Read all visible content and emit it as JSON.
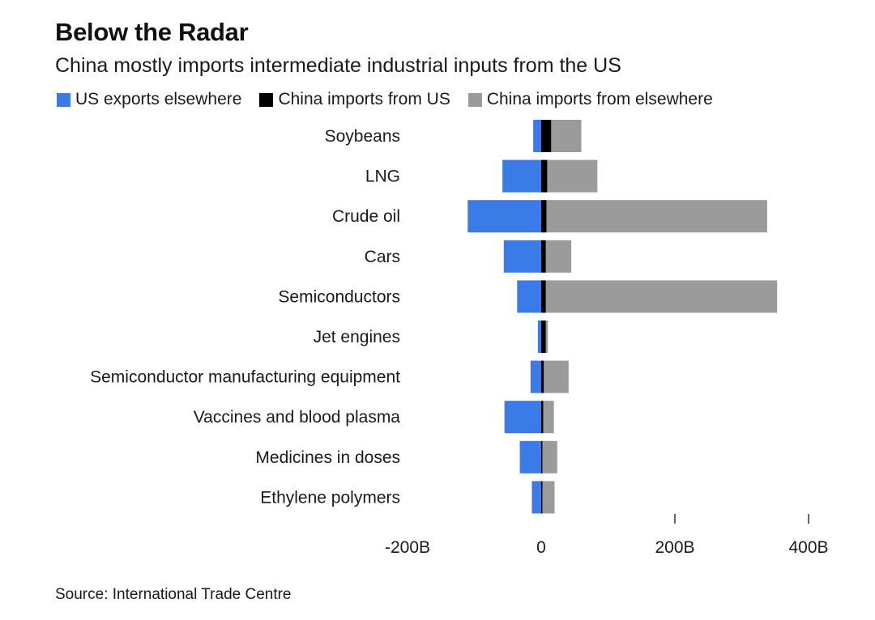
{
  "header": {
    "title": "Below the Radar",
    "subtitle": "China mostly imports intermediate industrial inputs from the US"
  },
  "source": "Source: International Trade Centre",
  "colors": {
    "us_exports_elsewhere": "#3a7be8",
    "china_imports_from_us": "#000000",
    "china_imports_elsewhere": "#9b9b9b"
  },
  "chart_data": {
    "type": "bar",
    "orientation": "horizontal",
    "stacked": "diverging",
    "categories": [
      "Soybeans",
      "LNG",
      "Crude oil",
      "Cars",
      "Semiconductors",
      "Jet engines",
      "Semiconductor manufacturing equipment",
      "Vaccines and blood plasma",
      "Medicines in doses",
      "Ethylene polymers"
    ],
    "series": [
      {
        "name": "US exports elsewhere",
        "color": "#3a7be8",
        "values": [
          -12,
          -58,
          -110,
          -56,
          -36,
          -5,
          -16,
          -55,
          -32,
          -14
        ]
      },
      {
        "name": "China imports from US",
        "color": "#000000",
        "values": [
          15,
          9,
          8,
          7,
          7,
          7,
          4,
          3,
          2,
          2
        ]
      },
      {
        "name": "China imports from elsewhere",
        "color": "#9b9b9b",
        "values": [
          45,
          75,
          330,
          38,
          346,
          3,
          37,
          16,
          22,
          18
        ]
      }
    ],
    "xlim": [
      -200,
      400
    ],
    "xticks": [
      {
        "value": -200,
        "label": "-200B"
      },
      {
        "value": 0,
        "label": "0"
      },
      {
        "value": 200,
        "label": "200B"
      },
      {
        "value": 400,
        "label": "400B"
      }
    ],
    "grid": false,
    "legend_position": "top-left"
  }
}
